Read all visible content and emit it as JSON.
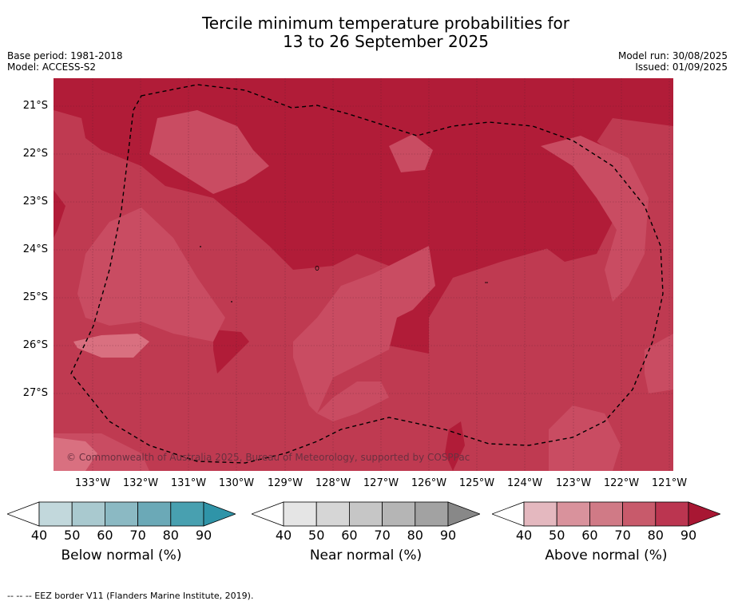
{
  "title": {
    "line1": "Tercile minimum temperature probabilities for",
    "line2": "13 to 26 September 2025"
  },
  "meta": {
    "base_period": "Base period: 1981-2018",
    "model": "Model: ACCESS-S2",
    "model_run": "Model run: 30/08/2025",
    "issued": "Issued: 01/09/2025"
  },
  "map": {
    "latitudes": [
      "21°S",
      "22°S",
      "23°S",
      "24°S",
      "25°S",
      "26°S",
      "27°S"
    ],
    "longitudes": [
      "133°W",
      "132°W",
      "131°W",
      "130°W",
      "129°W",
      "128°W",
      "127°W",
      "126°W",
      "125°W",
      "124°W",
      "123°W",
      "122°W",
      "121°W"
    ],
    "copyright": "© Commonwealth of Australia 2025, Bureau of Meteorology, supported by COSPPac",
    "colors": {
      "background": "#bf3a51",
      "band_80_90": "#b11c38",
      "band_70_80": "#c94c62",
      "band_60_70": "#d97080"
    }
  },
  "legends": [
    {
      "label": "Below normal (%)",
      "ticks": [
        "40",
        "50",
        "60",
        "70",
        "80",
        "90"
      ],
      "colors": [
        "#c2d8dc",
        "#a9c9cf",
        "#8bb9c3",
        "#6ba9b7",
        "#48a0b0",
        "#2f94a8"
      ]
    },
    {
      "label": "Near normal (%)",
      "ticks": [
        "40",
        "50",
        "60",
        "70",
        "80",
        "90"
      ],
      "colors": [
        "#e5e5e5",
        "#d6d6d6",
        "#c6c6c6",
        "#b5b5b5",
        "#a2a2a2",
        "#888888"
      ]
    },
    {
      "label": "Above normal (%)",
      "ticks": [
        "40",
        "50",
        "60",
        "70",
        "80",
        "90"
      ],
      "colors": [
        "#e4b8bf",
        "#d9929c",
        "#d07a86",
        "#c85a6b",
        "#bb3550",
        "#a81733"
      ]
    }
  ],
  "footer": "--  --  -- EEZ border V11 (Flanders Marine Institute, 2019)."
}
